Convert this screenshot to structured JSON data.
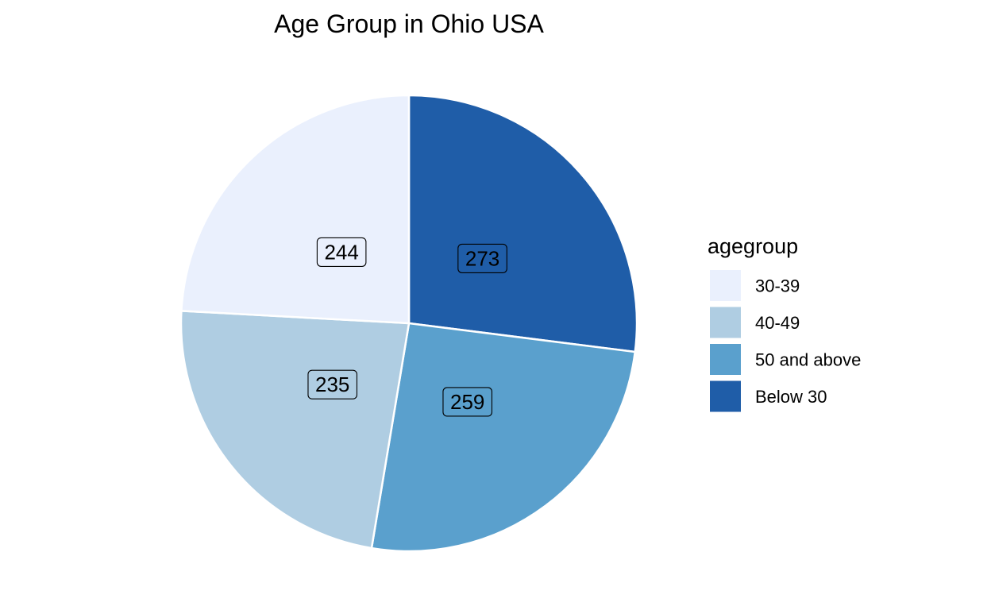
{
  "chart_data": {
    "type": "pie",
    "title": "Age Group in Ohio USA",
    "legend_title": "agegroup",
    "legend_position": "right",
    "start_angle": "12 o'clock, clockwise",
    "slices": [
      {
        "label": "Below 30",
        "value": 273,
        "color": "#1F5DA8"
      },
      {
        "label": "50 and above",
        "value": 259,
        "color": "#5AA0CD"
      },
      {
        "label": "40-49",
        "value": 235,
        "color": "#AFCDE2"
      },
      {
        "label": "30-39",
        "value": 244,
        "color": "#EAF0FD"
      }
    ],
    "legend_order": [
      "30-39",
      "40-49",
      "50 and above",
      "Below 30"
    ]
  }
}
